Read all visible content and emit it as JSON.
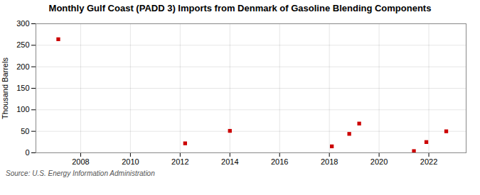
{
  "chart_data": {
    "type": "scatter",
    "title": "Monthly Gulf Coast (PADD 3) Imports from Denmark of Gasoline Blending Components",
    "ylabel": "Thousand Barrels",
    "source": "Source: U.S. Energy Information Administration",
    "x": [
      2007.1,
      2012.2,
      2014.0,
      2018.1,
      2018.8,
      2019.2,
      2021.4,
      2021.9,
      2022.7
    ],
    "values": [
      264,
      22,
      51,
      15,
      44,
      68,
      4,
      25,
      50
    ],
    "color": "#cc0000",
    "marker": "square",
    "xlim": [
      2006.2,
      2023.5
    ],
    "ylim": [
      0,
      300
    ],
    "xticks": [
      2008,
      2010,
      2012,
      2014,
      2016,
      2018,
      2020,
      2022
    ],
    "yticks": [
      0,
      50,
      100,
      150,
      200,
      250,
      300
    ],
    "grid": true
  }
}
